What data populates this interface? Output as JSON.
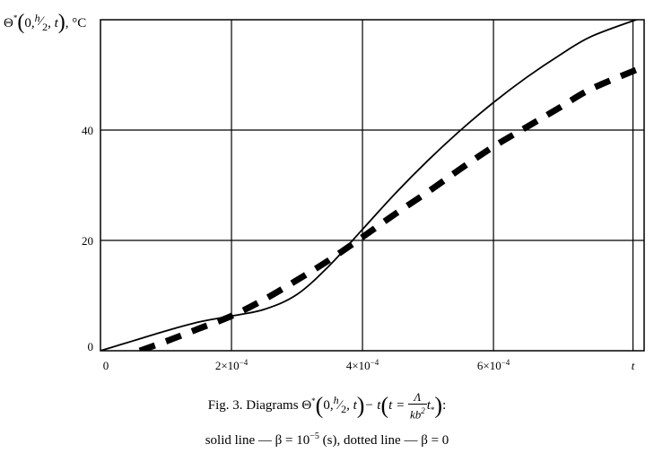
{
  "chart_data": {
    "type": "line",
    "ylabel_parts": {
      "symbol": "Θ",
      "star": "*",
      "args_lead": "0,",
      "h": "h",
      "two": "2",
      "args_tail": ", t",
      "unit": ", °C"
    },
    "x_tick_labels": [
      "0",
      "2×10",
      "4×10",
      "6×10",
      "t"
    ],
    "x_tick_exponent": "−4",
    "x_tick_values": [
      0,
      0.0002,
      0.0004,
      0.0006,
      0.000813
    ],
    "y_tick_labels": [
      "0",
      "20",
      "40"
    ],
    "y_tick_values": [
      0,
      20,
      40
    ],
    "xlim": [
      0,
      0.00083
    ],
    "ylim": [
      0,
      60
    ],
    "grid": true,
    "series": [
      {
        "style": "solid",
        "points": [
          [
            0,
            0
          ],
          [
            5e-05,
            1.8
          ],
          [
            0.0001,
            3.6
          ],
          [
            0.00015,
            5.2
          ],
          [
            0.0002,
            6.3
          ],
          [
            0.00025,
            7.5
          ],
          [
            0.0003,
            10.2
          ],
          [
            0.00035,
            15.5
          ],
          [
            0.0004,
            22
          ],
          [
            0.00045,
            28.5
          ],
          [
            0.0005,
            34.5
          ],
          [
            0.00055,
            40
          ],
          [
            0.0006,
            45
          ],
          [
            0.00065,
            49.5
          ],
          [
            0.0007,
            53.5
          ],
          [
            0.00075,
            57
          ],
          [
            0.00083,
            60.5
          ]
        ]
      },
      {
        "style": "dashed",
        "points": [
          [
            6e-05,
            0
          ],
          [
            0.0001,
            1.7
          ],
          [
            0.00015,
            4
          ],
          [
            0.0002,
            6.3
          ],
          [
            0.00025,
            9.3
          ],
          [
            0.0003,
            12.8
          ],
          [
            0.00035,
            16.5
          ],
          [
            0.0004,
            20.6
          ],
          [
            0.00045,
            24.8
          ],
          [
            0.0005,
            28.8
          ],
          [
            0.00055,
            33
          ],
          [
            0.0006,
            37
          ],
          [
            0.00065,
            40.5
          ],
          [
            0.0007,
            44
          ],
          [
            0.00075,
            47.5
          ],
          [
            0.00083,
            51.5
          ]
        ]
      }
    ]
  },
  "caption": {
    "line1_lead": "Fig. 3. Diagrams ",
    "theta": "Θ",
    "star": "*",
    "args_lead": "0,",
    "h": "h",
    "two": "2",
    "args_tail": ", t",
    "dash_t": "− t",
    "t_eq": "t = ",
    "frac_num": "Λ",
    "frac_den": "kb",
    "frac_den_exp": "2",
    "t_star": "t",
    "t_star_sub": "*",
    "colon": ":",
    "line2_solid": "solid line — β = 10",
    "line2_exp": "−5",
    "line2_unit": " (s)",
    "line2_dotted": ", dotted line — β = 0"
  }
}
